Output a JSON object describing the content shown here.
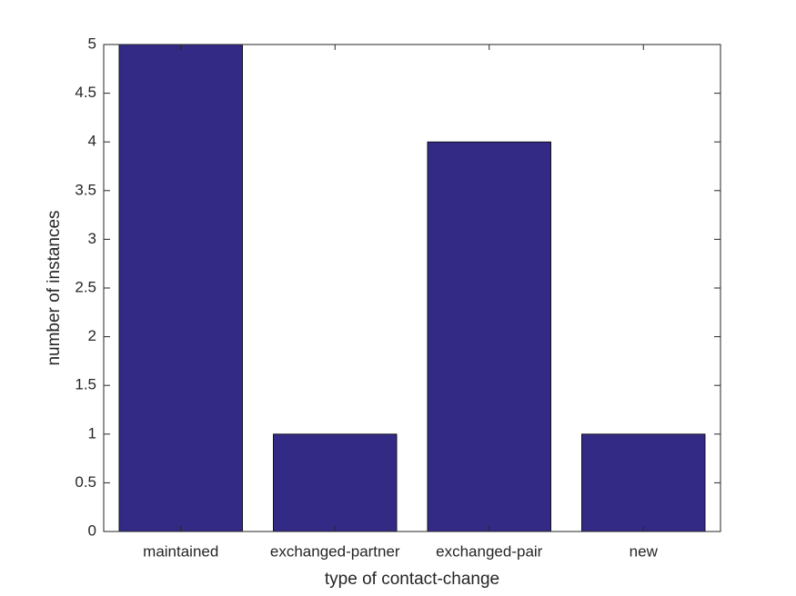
{
  "chart_data": {
    "type": "bar",
    "x_label": "type of contact-change",
    "y_label": "number of instances",
    "categories": [
      "maintained",
      "exchanged-partner",
      "exchanged-pair",
      "new"
    ],
    "values": [
      5,
      1,
      4,
      1
    ],
    "color": "#332a85",
    "ylim": [
      0,
      5
    ],
    "yticks": [
      0,
      0.5,
      1,
      1.5,
      2,
      2.5,
      3,
      3.5,
      4,
      4.5,
      5
    ],
    "grid": false
  }
}
